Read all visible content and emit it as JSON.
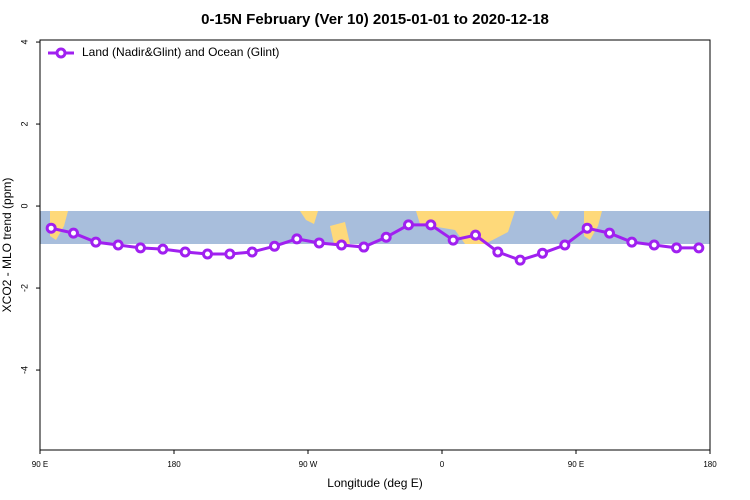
{
  "chart_data": {
    "type": "line",
    "title": "0-15N February (Ver 10)   2015-01-01 to 2020-12-18",
    "x_label": "Longitude (deg E)",
    "y_label": "XCO2 - MLO trend (ppm)",
    "x": [
      97.5,
      112.5,
      127.5,
      142.5,
      157.5,
      172.5,
      187.5,
      202.5,
      217.5,
      232.5,
      247.5,
      262.5,
      277.5,
      292.5,
      307.5,
      322.5,
      337.5,
      352.5,
      367.5,
      382.5,
      397.5,
      412.5,
      427.5,
      442.5,
      457.5,
      472.5,
      487.5,
      502.5,
      517.5,
      532.5
    ],
    "series": [
      {
        "name": "Land (Nadir&Glint) and Ocean (Glint)",
        "color": "#a020f0",
        "values": [
          -0.54,
          -0.66,
          -0.88,
          -0.95,
          -1.02,
          -1.05,
          -1.12,
          -1.17,
          -1.17,
          -1.12,
          -0.98,
          -0.8,
          -0.9,
          -0.95,
          -1.0,
          -0.76,
          -0.46,
          -0.46,
          -0.83,
          -0.71,
          -1.12,
          -1.32,
          -1.15,
          -0.95,
          -0.54,
          -0.66,
          -0.88,
          -0.95,
          -1.02,
          -1.02
        ]
      }
    ],
    "xlim": [
      90,
      540
    ],
    "xticks": [
      {
        "value": 90,
        "label": "90 E"
      },
      180,
      {
        "value": 270,
        "label": "90 W"
      },
      {
        "value": 360,
        "label": "0"
      },
      {
        "value": 450,
        "label": "90 E"
      },
      {
        "value": 540,
        "label": "180"
      }
    ],
    "ylim": [
      -5.95,
      4.05
    ],
    "yticks": [
      4,
      2,
      0,
      -2,
      -4
    ],
    "legend": "top-left"
  }
}
